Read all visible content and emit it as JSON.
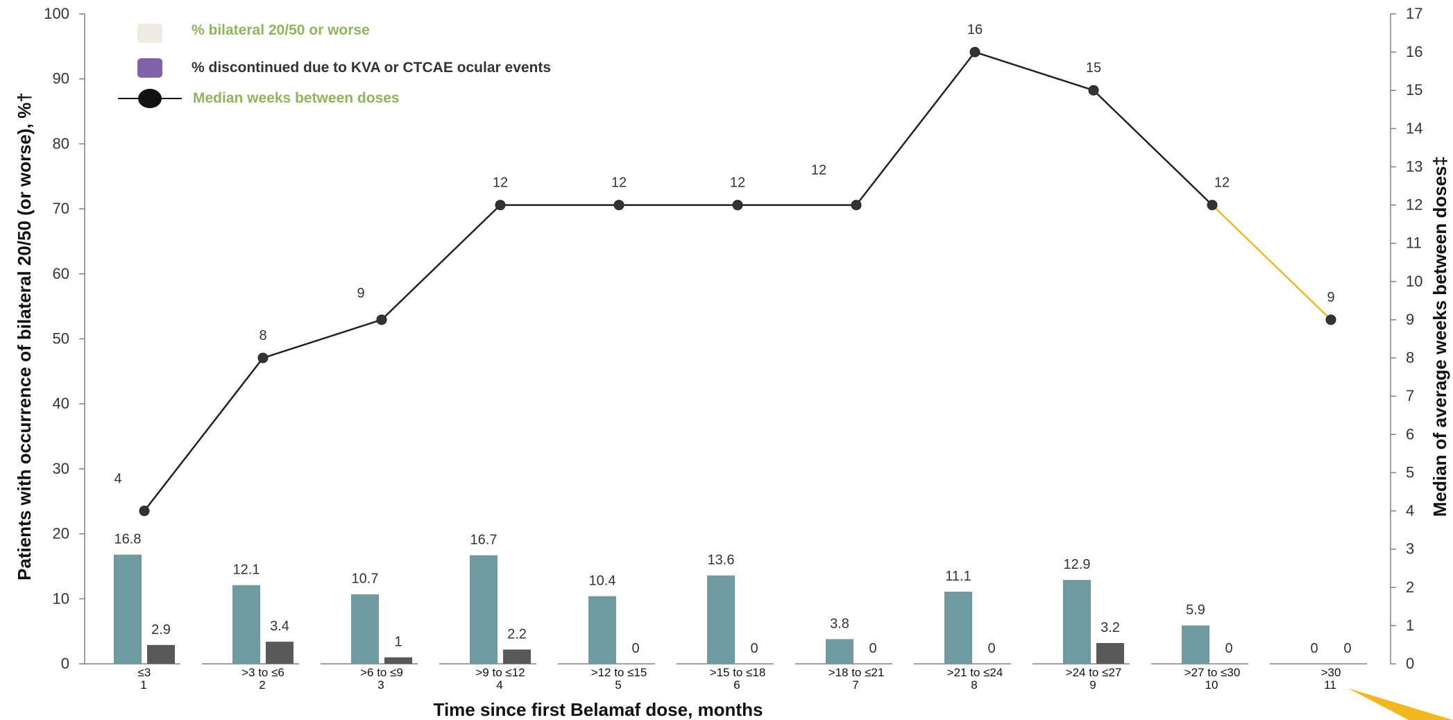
{
  "colors": {
    "bar_bilateral": "#6f9aa0",
    "bar_discontinued": "#595959",
    "line": "#222222",
    "line_last_segment": "#f2b820",
    "legend_green": "#8db65a",
    "legend_purple": "#7f63a8",
    "legend_beige": "#eeebe2",
    "axis": "#808080"
  },
  "chart_data": {
    "type": "bar",
    "xlabel": "Time since first Belamaf dose, months",
    "ylabel": "Patients  with occurrence of bilateral 20/50 (or worse), %†",
    "y2label": "Median of average weeks between doses‡",
    "ylim": [
      0,
      100
    ],
    "y2lim": [
      0,
      17
    ],
    "yticks": [
      0,
      10,
      20,
      30,
      40,
      50,
      60,
      70,
      80,
      90,
      100
    ],
    "y2ticks": [
      0,
      1,
      2,
      3,
      4,
      5,
      6,
      7,
      8,
      9,
      10,
      11,
      12,
      13,
      14,
      15,
      16,
      17
    ],
    "categories": [
      "≤3",
      ">3 to ≤6",
      ">6 to ≤9",
      ">9 to ≤12",
      ">12 to ≤15",
      ">15 to ≤18",
      ">18 to ≤21",
      ">21 to ≤24",
      ">24 to ≤27",
      ">27 to ≤30",
      ">30"
    ],
    "category_numbers": [
      "1",
      "2",
      "3",
      "4",
      "5",
      "6",
      "7",
      "8",
      "9",
      "10",
      "11"
    ],
    "legend_position": "top-left",
    "legend": [
      {
        "label": "% bilateral 20/50 or worse",
        "swatch": "box",
        "color": "#eeebe2",
        "text_color": "#8db65a"
      },
      {
        "label": "% discontinued due to KVA or CTCAE ocular events",
        "swatch": "box",
        "color": "#7f63a8",
        "text_color": "#333333"
      },
      {
        "label": "Median weeks between doses",
        "swatch": "line-marker",
        "color": "#111111",
        "text_color": "#8db65a"
      }
    ],
    "series": [
      {
        "type": "bar",
        "axis": "left",
        "color": "#6f9aa0",
        "values": [
          16.8,
          12.1,
          10.7,
          16.7,
          10.4,
          13.6,
          3.8,
          11.1,
          12.9,
          5.9,
          0
        ],
        "labels": [
          "16.8",
          "12.1",
          "10.7",
          "16.7",
          "10.4",
          "13.6",
          "3.8",
          "11.1",
          "12.9",
          "5.9",
          "0"
        ]
      },
      {
        "type": "bar",
        "axis": "left",
        "color": "#595959",
        "values": [
          2.9,
          3.4,
          1,
          2.2,
          0,
          0,
          0,
          0,
          3.2,
          0,
          0
        ],
        "labels": [
          "2.9",
          "3.4",
          "1",
          "2.2",
          "0",
          "0",
          "0",
          "0",
          "3.2",
          "0",
          "0"
        ]
      },
      {
        "type": "line",
        "axis": "right",
        "color": "#222222",
        "values": [
          4,
          8,
          9,
          12,
          12,
          12,
          12,
          16,
          15,
          12,
          9
        ],
        "labels": [
          "4",
          "8",
          "9",
          "12",
          "12",
          "12",
          "12",
          "16",
          "15",
          "12",
          "9"
        ]
      }
    ]
  }
}
